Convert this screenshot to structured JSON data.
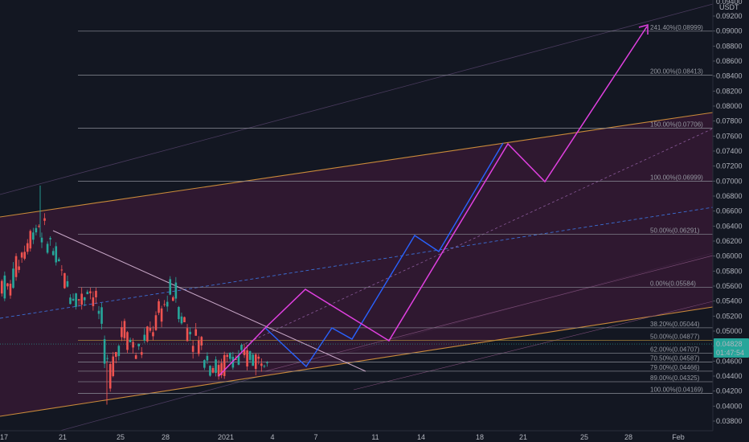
{
  "chart_data": {
    "type": "candlestick",
    "currency": "USDT",
    "x_dates": [
      "17",
      "21",
      "25",
      "28",
      "2021",
      "4",
      "7",
      "11",
      "14",
      "18",
      "21",
      "25",
      "28",
      "Feb"
    ],
    "y_ticks": [
      "0.03800",
      "0.04000",
      "0.04200",
      "0.04400",
      "0.04600",
      "0.04800",
      "0.05000",
      "0.05200",
      "0.05400",
      "0.05600",
      "0.05800",
      "0.06000",
      "0.06200",
      "0.06400",
      "0.06600",
      "0.06800",
      "0.07000",
      "0.07200",
      "0.07400",
      "0.07600",
      "0.07800",
      "0.08000",
      "0.08200",
      "0.08400",
      "0.08600",
      "0.08800",
      "0.09000",
      "0.09200"
    ],
    "y_top_partial": "0.09400",
    "ylim": [
      0.0372,
      0.0947
    ],
    "price_label": {
      "value": "0.04828",
      "countdown": "01:47:54",
      "price": 0.04828
    },
    "fib_levels": [
      {
        "label": "241.40%(0.08999)",
        "price": 0.08999
      },
      {
        "label": "200.00%(0.08413)",
        "price": 0.08413
      },
      {
        "label": "150.00%(0.07706)",
        "price": 0.07706
      },
      {
        "label": "100.00%(0.06999)",
        "price": 0.06999
      },
      {
        "label": "50.00%(0.06291)",
        "price": 0.06291
      },
      {
        "label": "0.00%(0.05584)",
        "price": 0.05584
      },
      {
        "label": "38.20%(0.05044)",
        "price": 0.05044
      },
      {
        "label": "50.00%(0.04877)",
        "price": 0.04877,
        "highlight": true
      },
      {
        "label": "62.00%(0.04707)",
        "price": 0.04707,
        "emphasis": true
      },
      {
        "label": "70.50%(0.04587)",
        "price": 0.04587
      },
      {
        "label": "79.00%(0.04466)",
        "price": 0.04466
      },
      {
        "label": "89.00%(0.04325)",
        "price": 0.04325
      },
      {
        "label": "100.00%(0.04169)",
        "price": 0.04169
      }
    ],
    "colors": {
      "background": "#131722",
      "channel_fill": "#3a1a35",
      "channel_line": "#c98a3a",
      "projection_magenta": "#e040e0",
      "projection_blue": "#2962ff",
      "fib_line": "#787b86",
      "candle_up": "#26a69a",
      "candle_down": "#ef5350",
      "price_label_bg": "#26a69a"
    }
  }
}
